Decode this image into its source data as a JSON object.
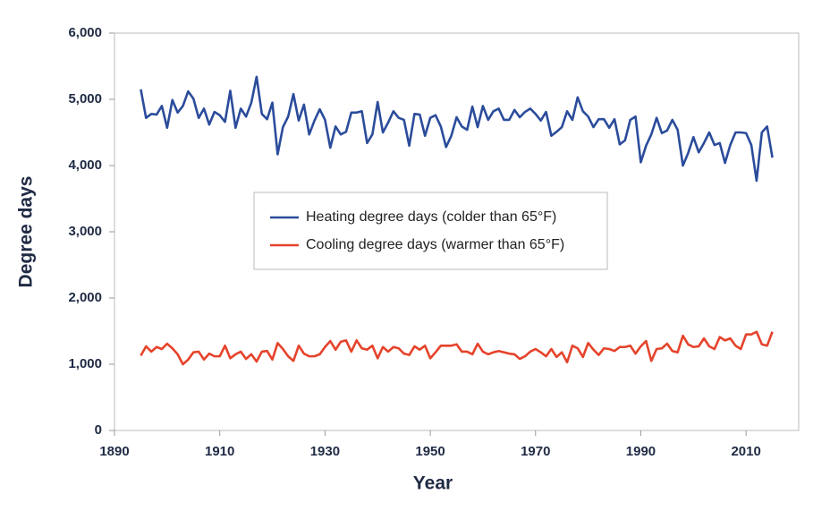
{
  "chart_data": {
    "type": "line",
    "x_label": "Year",
    "y_label": "Degree days",
    "x": [
      1895,
      1896,
      1897,
      1898,
      1899,
      1900,
      1901,
      1902,
      1903,
      1904,
      1905,
      1906,
      1907,
      1908,
      1909,
      1910,
      1911,
      1912,
      1913,
      1914,
      1915,
      1916,
      1917,
      1918,
      1919,
      1920,
      1921,
      1922,
      1923,
      1924,
      1925,
      1926,
      1927,
      1928,
      1929,
      1930,
      1931,
      1932,
      1933,
      1934,
      1935,
      1936,
      1937,
      1938,
      1939,
      1940,
      1941,
      1942,
      1943,
      1944,
      1945,
      1946,
      1947,
      1948,
      1949,
      1950,
      1951,
      1952,
      1953,
      1954,
      1955,
      1956,
      1957,
      1958,
      1959,
      1960,
      1961,
      1962,
      1963,
      1964,
      1965,
      1966,
      1967,
      1968,
      1969,
      1970,
      1971,
      1972,
      1973,
      1974,
      1975,
      1976,
      1977,
      1978,
      1979,
      1980,
      1981,
      1982,
      1983,
      1984,
      1985,
      1986,
      1987,
      1988,
      1989,
      1990,
      1991,
      1992,
      1993,
      1994,
      1995,
      1996,
      1997,
      1998,
      1999,
      2000,
      2001,
      2002,
      2003,
      2004,
      2005,
      2006,
      2007,
      2008,
      2009,
      2010,
      2011,
      2012,
      2013,
      2014,
      2015
    ],
    "series": [
      {
        "name": "Heating degree days (colder than 65°F)",
        "color": "#2b4c9b",
        "values": [
          5150,
          4720,
          4780,
          4770,
          4900,
          4570,
          4990,
          4800,
          4900,
          5120,
          5010,
          4720,
          4860,
          4620,
          4810,
          4760,
          4660,
          5130,
          4570,
          4860,
          4740,
          4950,
          5340,
          4780,
          4700,
          4950,
          4170,
          4580,
          4740,
          5080,
          4680,
          4920,
          4470,
          4680,
          4850,
          4690,
          4270,
          4590,
          4470,
          4510,
          4800,
          4800,
          4820,
          4340,
          4470,
          4960,
          4500,
          4650,
          4820,
          4720,
          4690,
          4300,
          4780,
          4770,
          4450,
          4720,
          4760,
          4590,
          4280,
          4450,
          4730,
          4590,
          4540,
          4890,
          4580,
          4900,
          4690,
          4820,
          4860,
          4690,
          4690,
          4840,
          4730,
          4810,
          4860,
          4780,
          4680,
          4810,
          4450,
          4510,
          4580,
          4820,
          4690,
          5030,
          4820,
          4740,
          4580,
          4700,
          4700,
          4570,
          4700,
          4320,
          4380,
          4690,
          4740,
          4050,
          4300,
          4470,
          4720,
          4490,
          4530,
          4690,
          4540,
          4000,
          4190,
          4430,
          4200,
          4340,
          4500,
          4310,
          4340,
          4040,
          4310,
          4500,
          4500,
          4490,
          4310,
          3770,
          4500,
          4590,
          4120
        ]
      },
      {
        "name": "Cooling degree days (warmer than 65°F)",
        "color": "#e5432b",
        "values": [
          1130,
          1270,
          1190,
          1260,
          1230,
          1310,
          1240,
          1150,
          1000,
          1070,
          1180,
          1190,
          1070,
          1160,
          1120,
          1120,
          1280,
          1090,
          1150,
          1190,
          1080,
          1150,
          1040,
          1190,
          1200,
          1070,
          1320,
          1230,
          1120,
          1050,
          1280,
          1160,
          1120,
          1120,
          1150,
          1260,
          1350,
          1220,
          1340,
          1360,
          1190,
          1360,
          1240,
          1220,
          1280,
          1090,
          1260,
          1190,
          1260,
          1240,
          1160,
          1140,
          1270,
          1220,
          1280,
          1090,
          1180,
          1280,
          1280,
          1280,
          1300,
          1190,
          1190,
          1150,
          1310,
          1190,
          1150,
          1180,
          1200,
          1180,
          1160,
          1150,
          1080,
          1120,
          1190,
          1230,
          1180,
          1120,
          1230,
          1110,
          1180,
          1030,
          1280,
          1240,
          1110,
          1320,
          1220,
          1140,
          1240,
          1230,
          1200,
          1260,
          1260,
          1280,
          1160,
          1270,
          1350,
          1050,
          1230,
          1240,
          1310,
          1200,
          1180,
          1430,
          1300,
          1260,
          1270,
          1390,
          1270,
          1230,
          1410,
          1360,
          1390,
          1280,
          1230,
          1450,
          1450,
          1490,
          1300,
          1280,
          1490
        ]
      }
    ],
    "xlim": [
      1890,
      2020
    ],
    "ylim": [
      0,
      6000
    ],
    "xticks": [
      1890,
      1910,
      1930,
      1950,
      1970,
      1990,
      2010
    ],
    "yticks": [
      0,
      {
        "value": 1000,
        "label": "1,000"
      },
      {
        "value": 2000,
        "label": "2,000"
      },
      {
        "value": 3000,
        "label": "3,000"
      },
      {
        "value": 4000,
        "label": "4,000"
      },
      {
        "value": 5000,
        "label": "5,000"
      },
      {
        "value": 6000,
        "label": "6,000"
      }
    ],
    "grid": false,
    "legend": "center"
  }
}
